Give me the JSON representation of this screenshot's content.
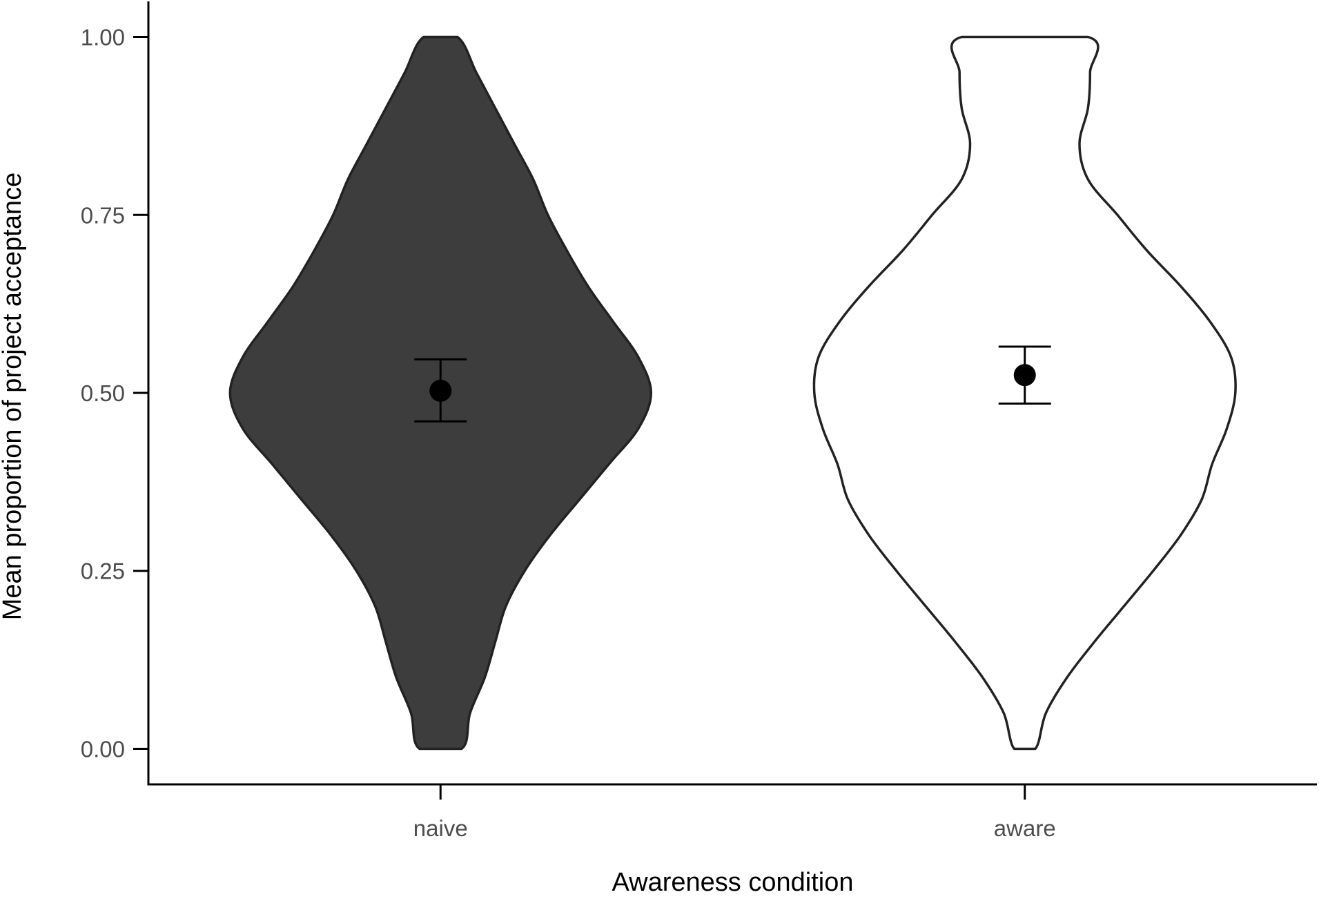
{
  "chart_data": {
    "type": "violin",
    "xlabel": "Awareness condition",
    "ylabel": "Mean proportion of project acceptance",
    "categories": [
      "naive",
      "aware"
    ],
    "ylim": [
      -0.05,
      1.05
    ],
    "yticks": [
      0,
      0.25,
      0.5,
      0.75,
      1
    ],
    "ytick_labels": [
      "0.00",
      "0.25",
      "0.50",
      "0.75",
      "1.00"
    ],
    "grid": false,
    "groups": [
      {
        "name": "naive",
        "fill": "#3d3d3d",
        "mean": 0.503,
        "ci": [
          0.46,
          0.547
        ],
        "density_profile": [
          [
            0.0,
            0.1
          ],
          [
            0.05,
            0.14
          ],
          [
            0.1,
            0.21
          ],
          [
            0.15,
            0.26
          ],
          [
            0.2,
            0.31
          ],
          [
            0.25,
            0.4
          ],
          [
            0.3,
            0.52
          ],
          [
            0.35,
            0.66
          ],
          [
            0.4,
            0.8
          ],
          [
            0.45,
            0.94
          ],
          [
            0.5,
            1.0
          ],
          [
            0.55,
            0.94
          ],
          [
            0.6,
            0.82
          ],
          [
            0.65,
            0.7
          ],
          [
            0.7,
            0.6
          ],
          [
            0.75,
            0.51
          ],
          [
            0.8,
            0.44
          ],
          [
            0.85,
            0.35
          ],
          [
            0.9,
            0.26
          ],
          [
            0.95,
            0.17
          ],
          [
            1.0,
            0.08
          ]
        ]
      },
      {
        "name": "aware",
        "fill": "#ffffff",
        "mean": 0.525,
        "ci": [
          0.485,
          0.565
        ],
        "density_profile": [
          [
            0.0,
            0.05
          ],
          [
            0.05,
            0.1
          ],
          [
            0.1,
            0.2
          ],
          [
            0.15,
            0.33
          ],
          [
            0.2,
            0.47
          ],
          [
            0.25,
            0.61
          ],
          [
            0.3,
            0.74
          ],
          [
            0.35,
            0.84
          ],
          [
            0.4,
            0.89
          ],
          [
            0.45,
            0.96
          ],
          [
            0.5,
            1.0
          ],
          [
            0.55,
            0.98
          ],
          [
            0.6,
            0.88
          ],
          [
            0.65,
            0.74
          ],
          [
            0.7,
            0.58
          ],
          [
            0.75,
            0.44
          ],
          [
            0.8,
            0.3
          ],
          [
            0.85,
            0.26
          ],
          [
            0.9,
            0.3
          ],
          [
            0.95,
            0.31
          ],
          [
            1.0,
            0.3
          ]
        ]
      }
    ]
  }
}
